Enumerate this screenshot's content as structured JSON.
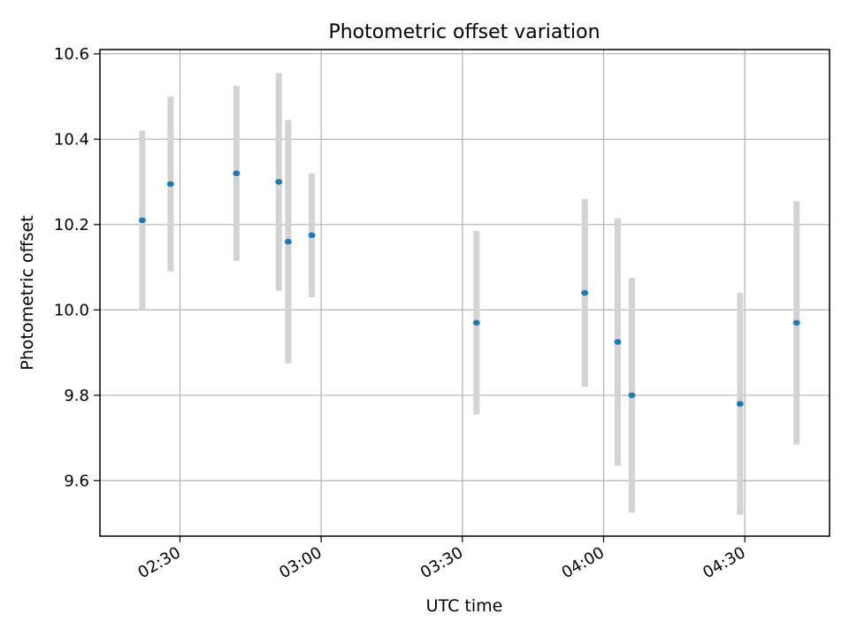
{
  "chart_data": {
    "type": "scatter",
    "title": "Photometric offset variation",
    "xlabel": "UTC time",
    "ylabel": "Photometric offset",
    "x_unit": "UTC time (HH:MM)",
    "xlim": [
      "02:13",
      "04:48"
    ],
    "ylim": [
      9.47,
      10.61
    ],
    "xticks": [
      "02:30",
      "03:00",
      "03:30",
      "04:00",
      "04:30"
    ],
    "yticks": [
      "9.6",
      "9.8",
      "10.0",
      "10.2",
      "10.4",
      "10.6"
    ],
    "grid": true,
    "legend": "none",
    "marker_color": "#1f77b4",
    "errorbar_color": "#d3d3d3",
    "series": [
      {
        "x": [
          "02:22",
          "02:28",
          "02:42",
          "02:51",
          "02:53",
          "02:58",
          "03:33",
          "03:56",
          "04:03",
          "04:06",
          "04:29",
          "04:41"
        ],
        "y": [
          10.21,
          10.295,
          10.32,
          10.3,
          10.16,
          10.175,
          9.97,
          10.04,
          9.925,
          9.8,
          9.78,
          9.97
        ],
        "yerr": [
          0.21,
          0.205,
          0.205,
          0.255,
          0.285,
          0.145,
          0.215,
          0.22,
          0.29,
          0.275,
          0.26,
          0.285
        ]
      }
    ]
  }
}
